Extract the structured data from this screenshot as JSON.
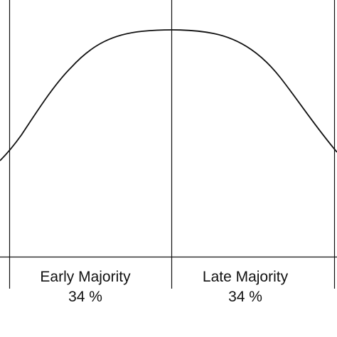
{
  "segments": [
    {
      "name": "Early Majority",
      "percent": "34 %"
    },
    {
      "name": "Late Majority",
      "percent": "34 %"
    }
  ],
  "colors": {
    "background": "#ffffff",
    "line": "#111111"
  }
}
